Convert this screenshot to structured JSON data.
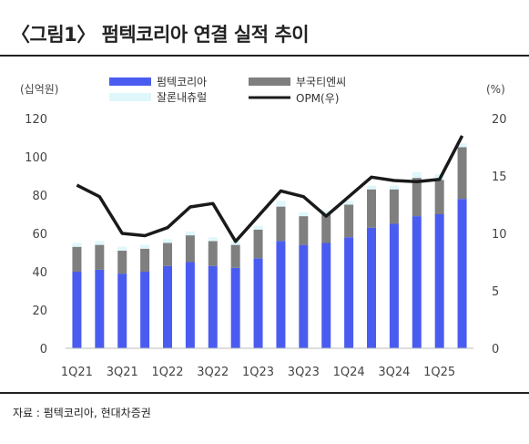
{
  "title": "〈그림1〉 펌텍코리아 연결 실적 추이",
  "source": "자료 : 펌텍코리아, 현대차증권",
  "chart_data": {
    "type": "bar",
    "categories": [
      "1Q21",
      "2Q21",
      "3Q21",
      "4Q21",
      "1Q22",
      "2Q22",
      "3Q22",
      "4Q22",
      "1Q23",
      "2Q23",
      "3Q23",
      "4Q23",
      "1Q24",
      "2Q24",
      "3Q24",
      "4Q24",
      "1Q25",
      "2Q25"
    ],
    "tick_labels": [
      "1Q21",
      "3Q21",
      "1Q22",
      "3Q22",
      "1Q23",
      "3Q23",
      "1Q24",
      "3Q24",
      "1Q25"
    ],
    "stacked": true,
    "y_left_unit": "(십억원)",
    "y_right_unit": "(%)",
    "ylim_left": [
      0,
      120
    ],
    "ylim_right": [
      0,
      20
    ],
    "yticks_left": [
      0,
      20,
      40,
      60,
      80,
      100,
      120
    ],
    "yticks_right": [
      0,
      5,
      10,
      15,
      20
    ],
    "legend_position": "top-center",
    "series": [
      {
        "name": "펌텍코리아",
        "axis": "left",
        "kind": "bar",
        "color": "#4a5cf0",
        "values": [
          40,
          41,
          39,
          40,
          43,
          45,
          43,
          42,
          47,
          56,
          54,
          55,
          58,
          63,
          65,
          69,
          70,
          78
        ]
      },
      {
        "name": "부국티엔씨",
        "axis": "left",
        "kind": "bar",
        "color": "#7f7f7f",
        "values": [
          13,
          13,
          12,
          12,
          12,
          14,
          13,
          12,
          15,
          18,
          15,
          15,
          17,
          20,
          18,
          20,
          18,
          27
        ]
      },
      {
        "name": "잘론내츄럴",
        "axis": "left",
        "kind": "bar",
        "color": "#dff7fb",
        "values": [
          2,
          2,
          2,
          2,
          2,
          2,
          2,
          2,
          2,
          3,
          2,
          2,
          2,
          2,
          2,
          3,
          3,
          2
        ]
      },
      {
        "name": "OPM(우)",
        "axis": "right",
        "kind": "line",
        "color": "#1a1a1a",
        "values": [
          14.2,
          13.2,
          10.0,
          9.8,
          10.5,
          12.3,
          12.6,
          9.3,
          11.5,
          13.7,
          13.2,
          11.5,
          13.2,
          14.9,
          14.6,
          14.5,
          14.7,
          18.5
        ]
      }
    ]
  }
}
